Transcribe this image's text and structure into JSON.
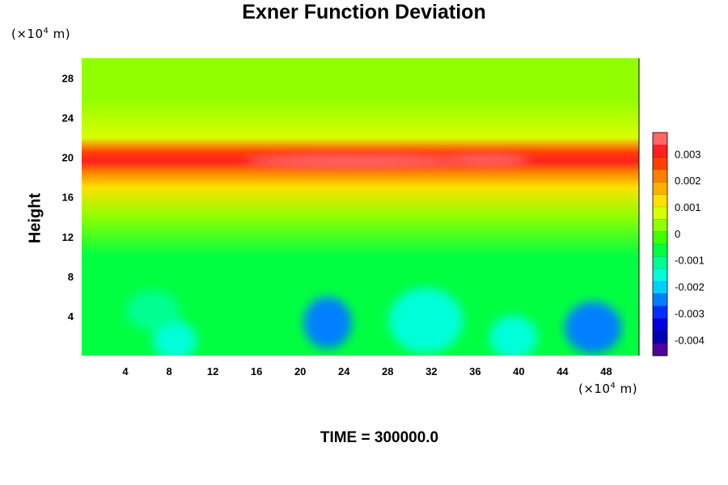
{
  "chart_data": {
    "type": "heatmap",
    "title": "Exner Function Deviation",
    "ylabel": "Height",
    "xlabel": "",
    "x_unit": {
      "prefix": "(×10",
      "exp": "4",
      "suffix": " m)"
    },
    "y_unit": {
      "prefix": "(×10",
      "exp": "4",
      "suffix": " m)"
    },
    "xlim": [
      0,
      51
    ],
    "ylim": [
      0,
      30
    ],
    "x_ticks": [
      4,
      8,
      12,
      16,
      20,
      24,
      28,
      32,
      36,
      40,
      44,
      48
    ],
    "y_ticks": [
      4,
      8,
      12,
      16,
      20,
      24,
      28
    ],
    "colorbar": {
      "range": [
        -0.0046,
        0.0038
      ],
      "ticks": [
        {
          "value": 0.003,
          "label": "0.003"
        },
        {
          "value": 0.002,
          "label": "0.002"
        },
        {
          "value": 0.001,
          "label": "0.001"
        },
        {
          "value": 0,
          "label": "0"
        },
        {
          "value": -0.001,
          "label": "-0.001"
        },
        {
          "value": -0.002,
          "label": "-0.002"
        },
        {
          "value": -0.003,
          "label": "-0.003"
        },
        {
          "value": -0.004,
          "label": "-0.004"
        }
      ],
      "colors": [
        "#ff6666",
        "#ff2020",
        "#ff4000",
        "#ff8000",
        "#ffb000",
        "#ffe000",
        "#d8ff00",
        "#90ff00",
        "#40ff00",
        "#00ff40",
        "#00ff90",
        "#00ffd8",
        "#00d0ff",
        "#0080ff",
        "#0030ff",
        "#0000e0",
        "#0000b0",
        "#5000a0"
      ]
    },
    "layers": [
      {
        "y": 30,
        "value": 0.0004
      },
      {
        "y": 26,
        "value": 0.0005
      },
      {
        "y": 22,
        "value": 0.0009
      },
      {
        "y": 20.5,
        "value": 0.0028
      },
      {
        "y": 19.6,
        "value": 0.0032
      },
      {
        "y": 18.5,
        "value": 0.0023
      },
      {
        "y": 17,
        "value": 0.0012
      },
      {
        "y": 14,
        "value": 0.0003
      },
      {
        "y": 10,
        "value": -0.0004
      },
      {
        "y": 6,
        "value": -0.0006
      },
      {
        "y": 0,
        "value": -0.0008
      }
    ],
    "anomalies": [
      {
        "x": 22.5,
        "y": 3.3,
        "value": -0.0025,
        "rx": 2.2,
        "ry": 2.6
      },
      {
        "x": 46.8,
        "y": 2.8,
        "value": -0.0026,
        "rx": 2.6,
        "ry": 2.6
      },
      {
        "x": 31.5,
        "y": 3.5,
        "value": -0.0016,
        "rx": 3.4,
        "ry": 3.3
      },
      {
        "x": 8.5,
        "y": 1.5,
        "value": -0.0016,
        "rx": 2.0,
        "ry": 2.0
      },
      {
        "x": 39.5,
        "y": 1.8,
        "value": -0.0015,
        "rx": 2.2,
        "ry": 2.2
      },
      {
        "x": 6.5,
        "y": 4.5,
        "value": -0.0012,
        "rx": 2.5,
        "ry": 2.0
      },
      {
        "x": 25,
        "y": 19.6,
        "value": 0.0036,
        "rx": 10,
        "ry": 0.7
      },
      {
        "x": 37,
        "y": 19.7,
        "value": 0.0035,
        "rx": 4,
        "ry": 0.6
      }
    ],
    "annotation": "TIME = 300000.0"
  }
}
